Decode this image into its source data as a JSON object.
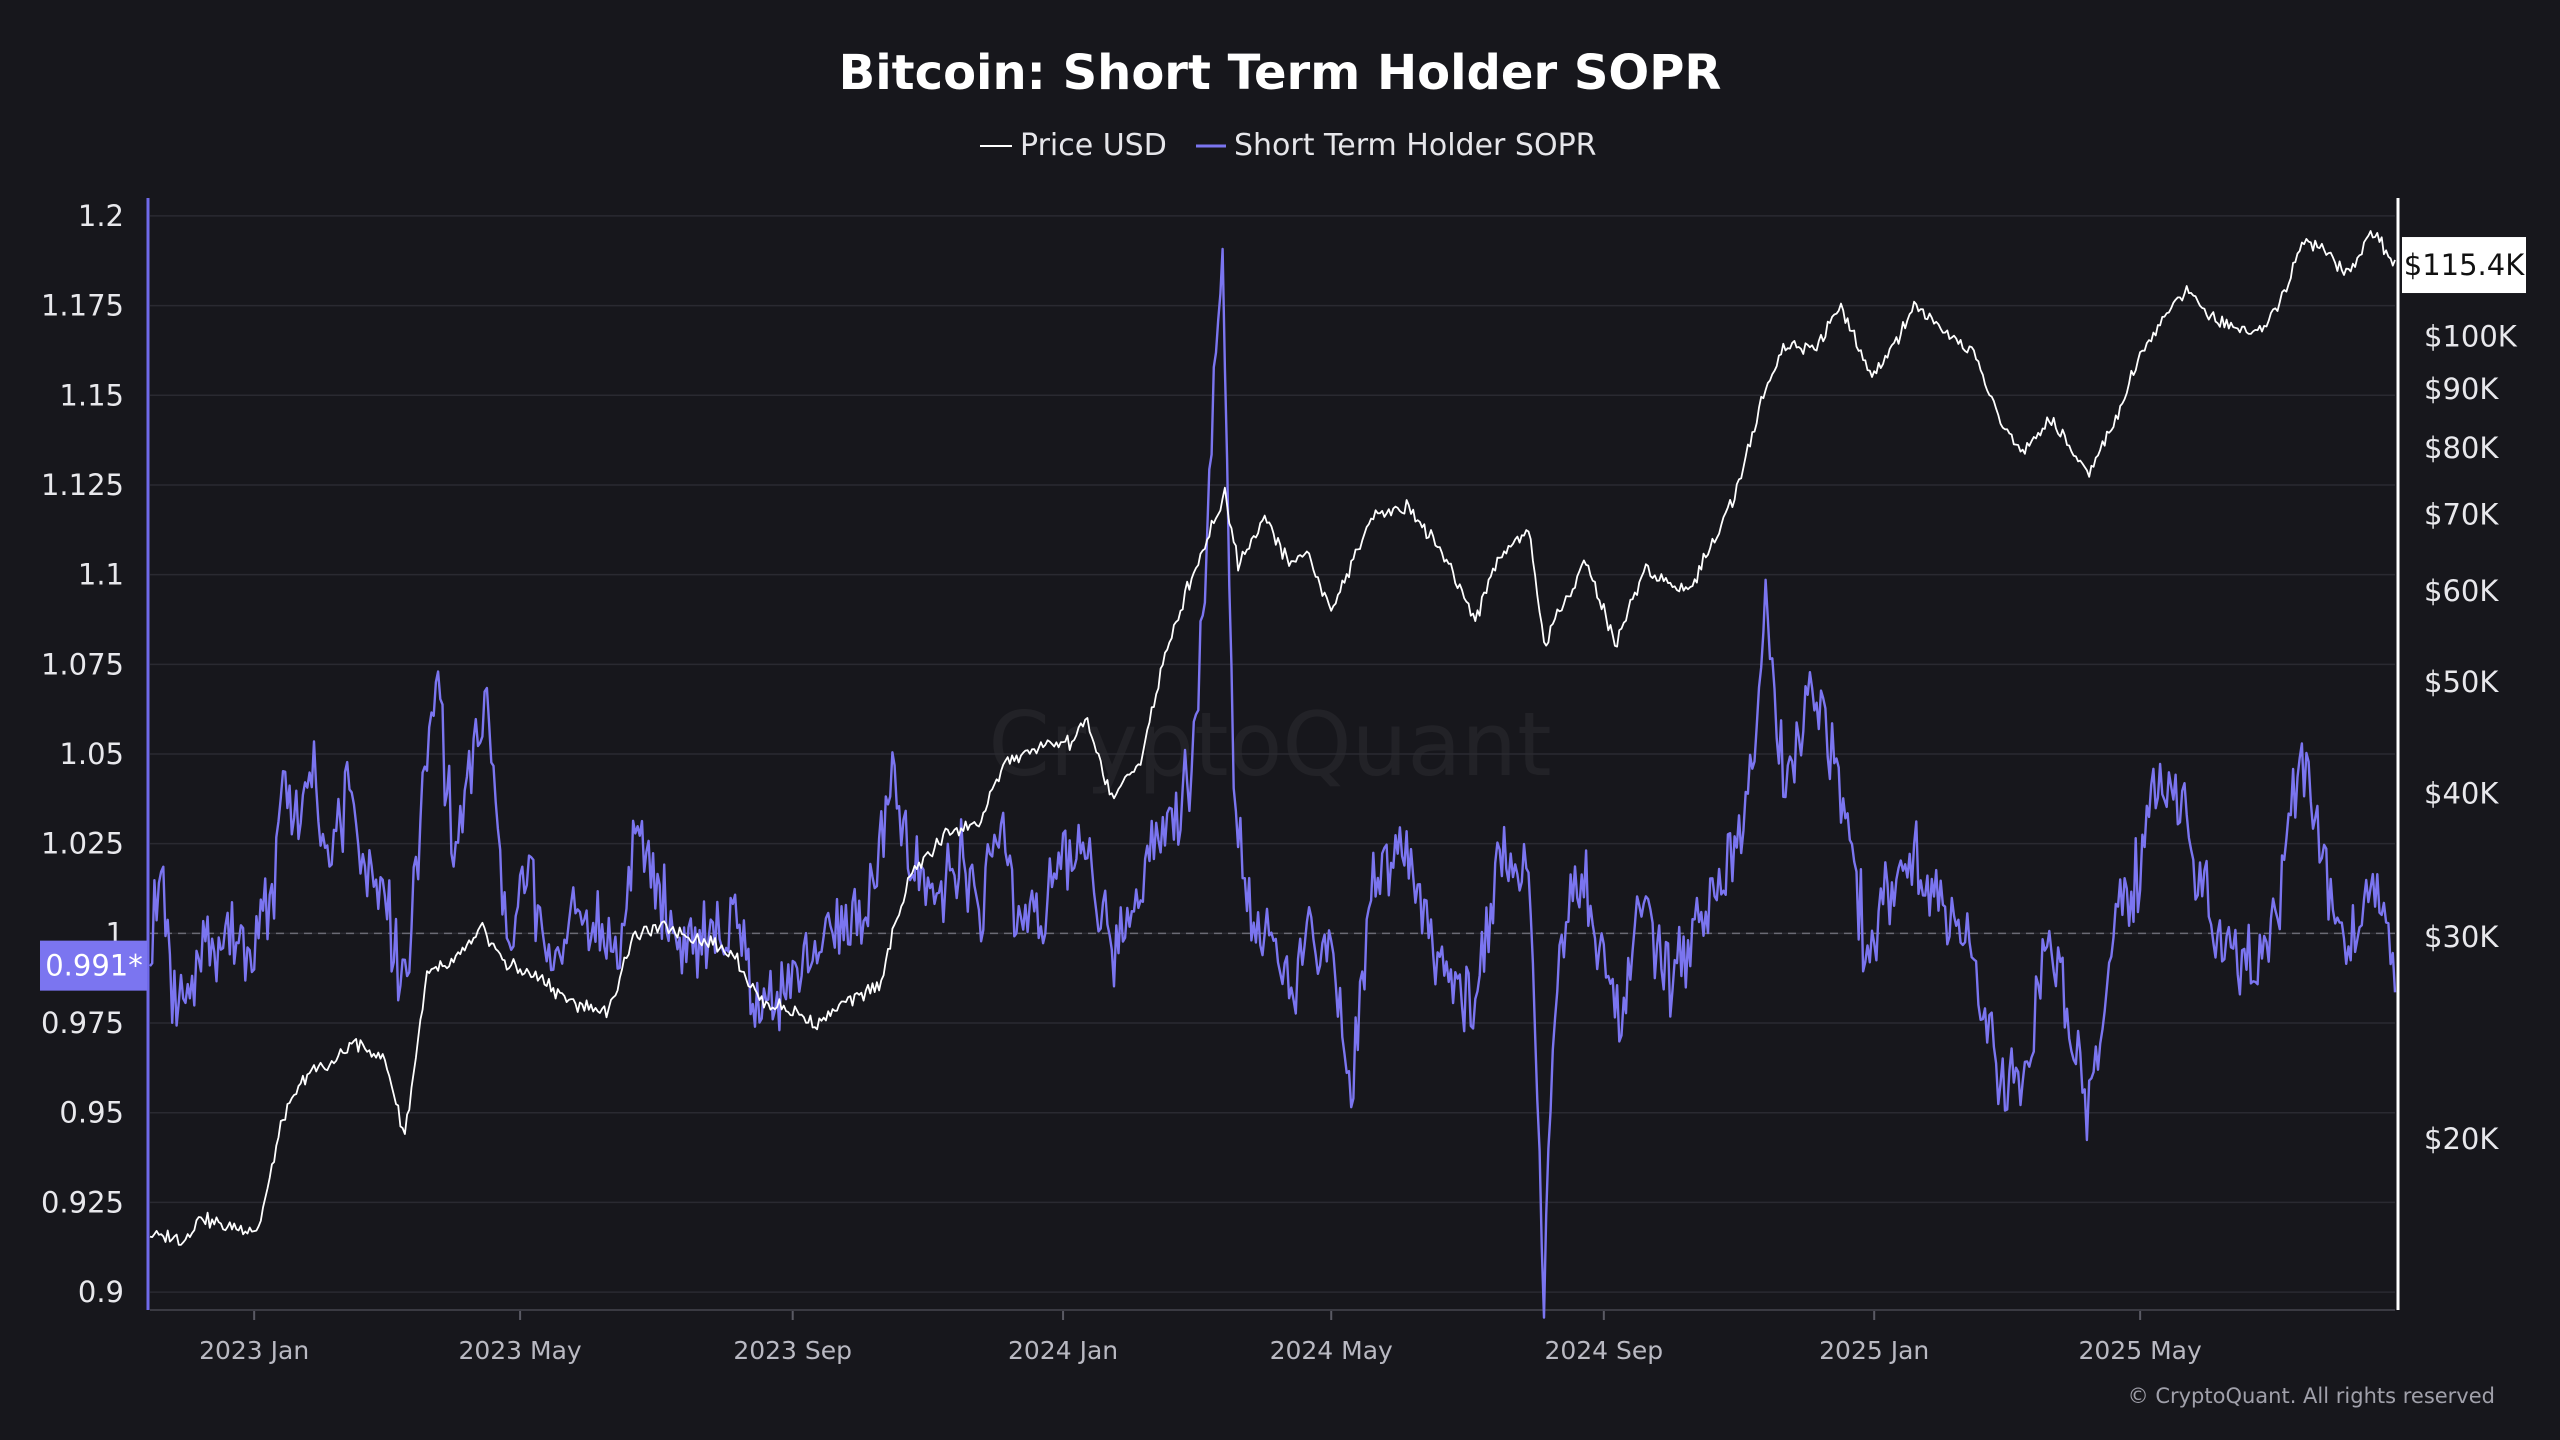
{
  "chart_data": {
    "type": "line",
    "title": "Bitcoin: Short Term Holder SOPR",
    "legend": {
      "placement": "top-center",
      "items": [
        "Price USD",
        "Short Term Holder SOPR"
      ]
    },
    "grid": true,
    "x_start": "2022-11-15",
    "x_end": "2025-08-24",
    "x_ticks": [
      {
        "date": "2023-01-01",
        "label": "2023 Jan"
      },
      {
        "date": "2023-05-01",
        "label": "2023 May"
      },
      {
        "date": "2023-09-01",
        "label": "2023 Sep"
      },
      {
        "date": "2024-01-01",
        "label": "2024 Jan"
      },
      {
        "date": "2024-05-01",
        "label": "2024 May"
      },
      {
        "date": "2024-09-01",
        "label": "2024 Sep"
      },
      {
        "date": "2025-01-01",
        "label": "2025 Jan"
      },
      {
        "date": "2025-05-01",
        "label": "2025 May"
      }
    ],
    "y_left": {
      "scale": "linear",
      "range": [
        0.895,
        1.205
      ],
      "ticks": [
        {
          "value": 1.2,
          "label": "1.2"
        },
        {
          "value": 1.175,
          "label": "1.175"
        },
        {
          "value": 1.15,
          "label": "1.15"
        },
        {
          "value": 1.125,
          "label": "1.125"
        },
        {
          "value": 1.1,
          "label": "1.1"
        },
        {
          "value": 1.075,
          "label": "1.075"
        },
        {
          "value": 1.05,
          "label": "1.05"
        },
        {
          "value": 1.025,
          "label": "1.025"
        },
        {
          "value": 1.0,
          "label": "1"
        },
        {
          "value": 0.975,
          "label": "0.975"
        },
        {
          "value": 0.95,
          "label": "0.95"
        },
        {
          "value": 0.925,
          "label": "0.925"
        },
        {
          "value": 0.9,
          "label": "0.9"
        }
      ]
    },
    "y_right": {
      "scale": "log",
      "range": [
        14200,
        132000
      ],
      "ticks": [
        {
          "value": 100000,
          "label": "$100K"
        },
        {
          "value": 90000,
          "label": "$90K"
        },
        {
          "value": 80000,
          "label": "$80K"
        },
        {
          "value": 70000,
          "label": "$70K"
        },
        {
          "value": 60000,
          "label": "$60K"
        },
        {
          "value": 50000,
          "label": "$50K"
        },
        {
          "value": 40000,
          "label": "$40K"
        },
        {
          "value": 30000,
          "label": "$30K"
        },
        {
          "value": 20000,
          "label": "$20K"
        }
      ]
    },
    "current_price_label": {
      "value": 115400,
      "label": "$115.4K"
    },
    "current_sopr_label": {
      "value": 0.991,
      "label": "0.991*"
    },
    "reference_line": 1.0,
    "series": [
      {
        "name": "Price USD",
        "axis": "right",
        "color": "#ffffff",
        "points": [
          [
            "2022-11-15",
            16600
          ],
          [
            "2022-11-20",
            16400
          ],
          [
            "2022-11-25",
            16500
          ],
          [
            "2022-11-30",
            16300
          ],
          [
            "2022-12-08",
            17150
          ],
          [
            "2022-12-20",
            16750
          ],
          [
            "2023-01-03",
            16700
          ],
          [
            "2023-01-14",
            20800
          ],
          [
            "2023-01-25",
            22900
          ],
          [
            "2023-02-05",
            23200
          ],
          [
            "2023-02-15",
            24300
          ],
          [
            "2023-03-01",
            23400
          ],
          [
            "2023-03-10",
            20200
          ],
          [
            "2023-03-20",
            27800
          ],
          [
            "2023-04-01",
            28500
          ],
          [
            "2023-04-14",
            30400
          ],
          [
            "2023-04-25",
            28400
          ],
          [
            "2023-05-10",
            27600
          ],
          [
            "2023-05-25",
            26300
          ],
          [
            "2023-06-10",
            25800
          ],
          [
            "2023-06-21",
            30100
          ],
          [
            "2023-07-05",
            30600
          ],
          [
            "2023-07-20",
            30000
          ],
          [
            "2023-08-05",
            29100
          ],
          [
            "2023-08-17",
            26400
          ],
          [
            "2023-09-01",
            25900
          ],
          [
            "2023-09-11",
            25200
          ],
          [
            "2023-09-25",
            26300
          ],
          [
            "2023-10-10",
            27300
          ],
          [
            "2023-10-24",
            34000
          ],
          [
            "2023-11-10",
            37000
          ],
          [
            "2023-11-25",
            37800
          ],
          [
            "2023-12-05",
            42500
          ],
          [
            "2023-12-20",
            43800
          ],
          [
            "2024-01-05",
            44300
          ],
          [
            "2024-01-11",
            46500
          ],
          [
            "2024-01-23",
            39600
          ],
          [
            "2024-02-05",
            42800
          ],
          [
            "2024-02-15",
            51800
          ],
          [
            "2024-02-28",
            62000
          ],
          [
            "2024-03-05",
            66000
          ],
          [
            "2024-03-14",
            73000
          ],
          [
            "2024-03-20",
            63500
          ],
          [
            "2024-04-01",
            69500
          ],
          [
            "2024-04-13",
            63000
          ],
          [
            "2024-04-20",
            65000
          ],
          [
            "2024-05-01",
            57500
          ],
          [
            "2024-05-15",
            66500
          ],
          [
            "2024-05-21",
            70500
          ],
          [
            "2024-06-05",
            71000
          ],
          [
            "2024-06-20",
            64900
          ],
          [
            "2024-07-05",
            56700
          ],
          [
            "2024-07-15",
            64000
          ],
          [
            "2024-07-29",
            68000
          ],
          [
            "2024-08-05",
            54000
          ],
          [
            "2024-08-24",
            64000
          ],
          [
            "2024-09-06",
            53900
          ],
          [
            "2024-09-20",
            63000
          ],
          [
            "2024-10-01",
            61000
          ],
          [
            "2024-10-10",
            60200
          ],
          [
            "2024-10-29",
            72000
          ],
          [
            "2024-11-13",
            90000
          ],
          [
            "2024-11-22",
            98500
          ],
          [
            "2024-12-05",
            98000
          ],
          [
            "2024-12-17",
            106000
          ],
          [
            "2024-12-30",
            92500
          ],
          [
            "2025-01-07",
            96000
          ],
          [
            "2025-01-20",
            106500
          ],
          [
            "2025-02-01",
            100500
          ],
          [
            "2025-02-15",
            97000
          ],
          [
            "2025-02-27",
            84000
          ],
          [
            "2025-03-10",
            79000
          ],
          [
            "2025-03-20",
            85000
          ],
          [
            "2025-04-08",
            76500
          ],
          [
            "2025-04-20",
            85000
          ],
          [
            "2025-05-01",
            96000
          ],
          [
            "2025-05-12",
            104000
          ],
          [
            "2025-05-22",
            110000
          ],
          [
            "2025-06-05",
            103000
          ],
          [
            "2025-06-22",
            100900
          ],
          [
            "2025-07-02",
            106000
          ],
          [
            "2025-07-14",
            121000
          ],
          [
            "2025-07-25",
            118500
          ],
          [
            "2025-08-02",
            113000
          ],
          [
            "2025-08-14",
            123500
          ],
          [
            "2025-08-24",
            115400
          ]
        ]
      },
      {
        "name": "Short Term Holder SOPR",
        "axis": "left",
        "color": "#7b75f0",
        "points": [
          [
            "2022-11-15",
            0.993
          ],
          [
            "2022-11-20",
            1.018
          ],
          [
            "2022-11-25",
            0.985
          ],
          [
            "2022-12-01",
            0.975
          ],
          [
            "2022-12-08",
            0.997
          ],
          [
            "2022-12-15",
            0.999
          ],
          [
            "2022-12-25",
            0.998
          ],
          [
            "2023-01-01",
            0.997
          ],
          [
            "2023-01-10",
            1.012
          ],
          [
            "2023-01-14",
            1.046
          ],
          [
            "2023-01-21",
            1.032
          ],
          [
            "2023-01-28",
            1.044
          ],
          [
            "2023-02-05",
            1.02
          ],
          [
            "2023-02-12",
            1.038
          ],
          [
            "2023-02-20",
            1.022
          ],
          [
            "2023-03-01",
            1.012
          ],
          [
            "2023-03-10",
            0.982
          ],
          [
            "2023-03-18",
            1.04
          ],
          [
            "2023-03-25",
            1.07
          ],
          [
            "2023-04-01",
            1.02
          ],
          [
            "2023-04-08",
            1.045
          ],
          [
            "2023-04-16",
            1.062
          ],
          [
            "2023-04-25",
            1.0
          ],
          [
            "2023-05-05",
            1.015
          ],
          [
            "2023-05-15",
            0.99
          ],
          [
            "2023-05-25",
            1.008
          ],
          [
            "2023-06-05",
            1.002
          ],
          [
            "2023-06-15",
            0.992
          ],
          [
            "2023-06-21",
            1.028
          ],
          [
            "2023-06-30",
            1.015
          ],
          [
            "2023-07-10",
            1.0
          ],
          [
            "2023-07-20",
            0.995
          ],
          [
            "2023-08-01",
            1.002
          ],
          [
            "2023-08-10",
            0.998
          ],
          [
            "2023-08-17",
            0.975
          ],
          [
            "2023-08-25",
            0.984
          ],
          [
            "2023-09-05",
            0.99
          ],
          [
            "2023-09-15",
            0.998
          ],
          [
            "2023-09-25",
            1.002
          ],
          [
            "2023-10-05",
            1.006
          ],
          [
            "2023-10-16",
            1.042
          ],
          [
            "2023-10-24",
            1.018
          ],
          [
            "2023-11-05",
            1.012
          ],
          [
            "2023-11-15",
            1.022
          ],
          [
            "2023-11-25",
            1.008
          ],
          [
            "2023-12-05",
            1.03
          ],
          [
            "2023-12-12",
            1.002
          ],
          [
            "2023-12-25",
            1.01
          ],
          [
            "2024-01-05",
            1.022
          ],
          [
            "2024-01-11",
            1.025
          ],
          [
            "2024-01-23",
            0.99
          ],
          [
            "2024-02-05",
            1.015
          ],
          [
            "2024-02-15",
            1.028
          ],
          [
            "2024-02-28",
            1.045
          ],
          [
            "2024-03-05",
            1.095
          ],
          [
            "2024-03-13",
            1.2
          ],
          [
            "2024-03-18",
            1.04
          ],
          [
            "2024-03-25",
            1.01
          ],
          [
            "2024-04-01",
            0.998
          ],
          [
            "2024-04-13",
            0.985
          ],
          [
            "2024-04-20",
            1.0
          ],
          [
            "2024-05-01",
            0.992
          ],
          [
            "2024-05-10",
            0.955
          ],
          [
            "2024-05-20",
            1.015
          ],
          [
            "2024-06-05",
            1.02
          ],
          [
            "2024-06-20",
            0.99
          ],
          [
            "2024-07-05",
            0.978
          ],
          [
            "2024-07-15",
            1.022
          ],
          [
            "2024-07-29",
            1.015
          ],
          [
            "2024-08-05",
            0.904
          ],
          [
            "2024-08-12",
            0.998
          ],
          [
            "2024-08-24",
            1.015
          ],
          [
            "2024-09-06",
            0.975
          ],
          [
            "2024-09-20",
            1.01
          ],
          [
            "2024-10-01",
            0.985
          ],
          [
            "2024-10-15",
            1.005
          ],
          [
            "2024-10-29",
            1.022
          ],
          [
            "2024-11-06",
            1.045
          ],
          [
            "2024-11-13",
            1.09
          ],
          [
            "2024-11-22",
            1.04
          ],
          [
            "2024-12-05",
            1.07
          ],
          [
            "2024-12-17",
            1.04
          ],
          [
            "2024-12-30",
            0.99
          ],
          [
            "2025-01-07",
            1.015
          ],
          [
            "2025-01-20",
            1.022
          ],
          [
            "2025-02-01",
            1.005
          ],
          [
            "2025-02-15",
            0.995
          ],
          [
            "2025-02-27",
            0.955
          ],
          [
            "2025-03-10",
            0.96
          ],
          [
            "2025-03-20",
            1.0
          ],
          [
            "2025-04-08",
            0.95
          ],
          [
            "2025-04-20",
            1.005
          ],
          [
            "2025-05-01",
            1.02
          ],
          [
            "2025-05-12",
            1.045
          ],
          [
            "2025-05-22",
            1.03
          ],
          [
            "2025-06-05",
            1.0
          ],
          [
            "2025-06-22",
            0.99
          ],
          [
            "2025-07-02",
            1.01
          ],
          [
            "2025-07-14",
            1.05
          ],
          [
            "2025-07-25",
            1.015
          ],
          [
            "2025-08-02",
            0.995
          ],
          [
            "2025-08-14",
            1.01
          ],
          [
            "2025-08-24",
            0.991
          ]
        ]
      }
    ],
    "watermark": "CryptoQuant",
    "copyright": "© CryptoQuant. All rights reserved"
  },
  "colors": {
    "background": "#17171c",
    "grid": "#2a2a31",
    "price": "#ffffff",
    "sopr": "#7b75f0",
    "sopr_axis": "#6f69e8"
  }
}
